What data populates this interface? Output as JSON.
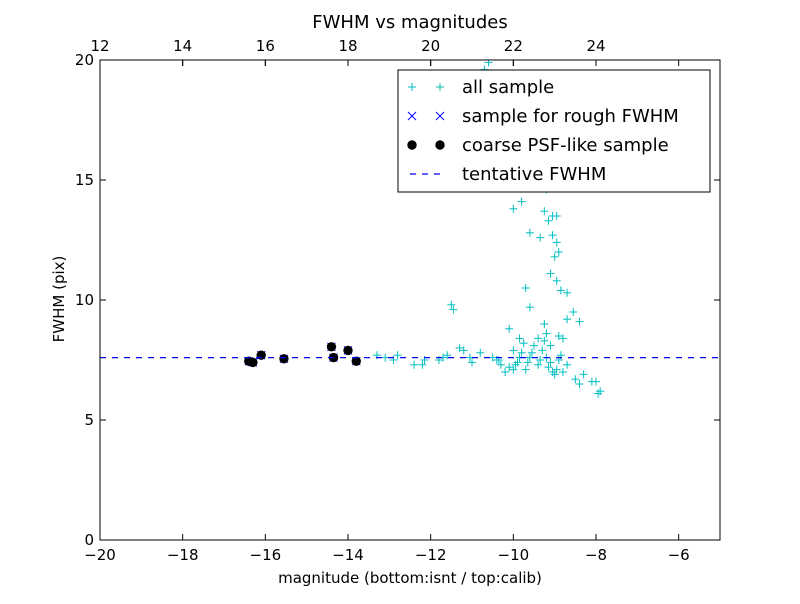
{
  "chart_data": {
    "type": "scatter",
    "title": "FWHM vs magnitudes",
    "xlabel": "magnitude (bottom:isnt / top:calib)",
    "ylabel": "FWHM (pix)",
    "xlim": [
      -20,
      -5
    ],
    "ylim": [
      0,
      20
    ],
    "x_ticks": [
      -20,
      -18,
      -16,
      -14,
      -12,
      -10,
      -8,
      -6
    ],
    "x_tick_labels": [
      "−20",
      "−18",
      "−16",
      "−14",
      "−12",
      "−10",
      "−8",
      "−6"
    ],
    "y_ticks": [
      0,
      5,
      10,
      15,
      20
    ],
    "y_tick_labels": [
      "0",
      "5",
      "10",
      "15",
      "20"
    ],
    "top_axis": {
      "offset_from_bottom": 32,
      "ticks": [
        12,
        14,
        16,
        18,
        20,
        22,
        24
      ],
      "tick_labels": [
        "12",
        "14",
        "16",
        "18",
        "20",
        "22",
        "24"
      ]
    },
    "legend_position": "top-right",
    "grid": false,
    "series": [
      {
        "name": "all sample",
        "marker": "+",
        "color": "#00bfbf",
        "points": [
          [
            -13.3,
            7.7
          ],
          [
            -13.1,
            7.6
          ],
          [
            -12.9,
            7.5
          ],
          [
            -12.8,
            7.7
          ],
          [
            -12.4,
            7.3
          ],
          [
            -12.2,
            7.3
          ],
          [
            -12.15,
            7.5
          ],
          [
            -11.8,
            7.5
          ],
          [
            -11.7,
            7.6
          ],
          [
            -11.6,
            7.7
          ],
          [
            -11.5,
            9.8
          ],
          [
            -11.45,
            9.6
          ],
          [
            -11.3,
            8.0
          ],
          [
            -11.2,
            7.9
          ],
          [
            -11.05,
            7.6
          ],
          [
            -11.0,
            7.4
          ],
          [
            -10.8,
            7.8
          ],
          [
            -10.5,
            7.6
          ],
          [
            -10.4,
            7.5
          ],
          [
            -10.35,
            7.5
          ],
          [
            -10.3,
            7.3
          ],
          [
            -10.2,
            7.0
          ],
          [
            -10.1,
            7.2
          ],
          [
            -10.0,
            7.1
          ],
          [
            -10.0,
            7.9
          ],
          [
            -9.95,
            7.3
          ],
          [
            -9.9,
            7.4
          ],
          [
            -9.85,
            7.6
          ],
          [
            -9.8,
            7.8
          ],
          [
            -9.75,
            8.2
          ],
          [
            -9.7,
            7.1
          ],
          [
            -9.65,
            7.4
          ],
          [
            -9.6,
            7.6
          ],
          [
            -9.55,
            7.8
          ],
          [
            -9.5,
            8.1
          ],
          [
            -9.4,
            7.3
          ],
          [
            -9.35,
            7.5
          ],
          [
            -9.3,
            7.9
          ],
          [
            -9.25,
            8.3
          ],
          [
            -9.2,
            7.6
          ],
          [
            -9.15,
            7.2
          ],
          [
            -9.1,
            7.4
          ],
          [
            -9.05,
            7.0
          ],
          [
            -9.0,
            6.9
          ],
          [
            -8.95,
            7.1
          ],
          [
            -8.9,
            7.5
          ],
          [
            -8.85,
            7.7
          ],
          [
            -8.8,
            7.0
          ],
          [
            -8.7,
            7.3
          ],
          [
            -8.5,
            6.7
          ],
          [
            -8.4,
            6.5
          ],
          [
            -8.3,
            6.9
          ],
          [
            -8.1,
            6.6
          ],
          [
            -8.0,
            6.6
          ],
          [
            -7.95,
            6.1
          ],
          [
            -7.9,
            6.2
          ],
          [
            -10.1,
            8.8
          ],
          [
            -9.85,
            8.4
          ],
          [
            -9.6,
            9.7
          ],
          [
            -9.4,
            8.4
          ],
          [
            -9.25,
            9.0
          ],
          [
            -9.2,
            8.6
          ],
          [
            -9.1,
            8.1
          ],
          [
            -8.9,
            8.5
          ],
          [
            -8.8,
            8.4
          ],
          [
            -8.7,
            9.2
          ],
          [
            -8.55,
            9.5
          ],
          [
            -8.4,
            9.1
          ],
          [
            -9.7,
            10.5
          ],
          [
            -8.85,
            10.4
          ],
          [
            -8.7,
            10.3
          ],
          [
            -8.95,
            10.8
          ],
          [
            -9.0,
            11.8
          ],
          [
            -8.9,
            12.0
          ],
          [
            -8.95,
            12.4
          ],
          [
            -9.1,
            11.1
          ],
          [
            -9.05,
            12.7
          ],
          [
            -9.6,
            12.8
          ],
          [
            -9.35,
            12.6
          ],
          [
            -10.0,
            13.8
          ],
          [
            -9.8,
            14.1
          ],
          [
            -9.25,
            13.7
          ],
          [
            -9.15,
            13.3
          ],
          [
            -9.05,
            13.5
          ],
          [
            -8.95,
            13.5
          ],
          [
            -9.2,
            14.6
          ],
          [
            -10.7,
            19.6
          ],
          [
            -10.6,
            19.9
          ]
        ]
      },
      {
        "name": "sample for rough FWHM",
        "marker": "x",
        "color": "#0000ff",
        "points": [
          [
            -16.4,
            7.45
          ],
          [
            -16.3,
            7.4
          ],
          [
            -16.1,
            7.7
          ],
          [
            -15.55,
            7.55
          ],
          [
            -14.4,
            8.05
          ],
          [
            -14.35,
            7.6
          ],
          [
            -14.0,
            7.9
          ],
          [
            -13.8,
            7.45
          ]
        ]
      },
      {
        "name": "coarse PSF-like sample",
        "marker": "o",
        "color": "#000000",
        "points": [
          [
            -16.4,
            7.45
          ],
          [
            -16.3,
            7.4
          ],
          [
            -16.1,
            7.7
          ],
          [
            -15.55,
            7.55
          ],
          [
            -14.4,
            8.05
          ],
          [
            -14.35,
            7.6
          ],
          [
            -14.0,
            7.9
          ],
          [
            -13.8,
            7.45
          ]
        ]
      },
      {
        "name": "tentative FWHM",
        "marker": "dashed-line",
        "color": "#0000ff",
        "y": 7.6
      }
    ]
  }
}
